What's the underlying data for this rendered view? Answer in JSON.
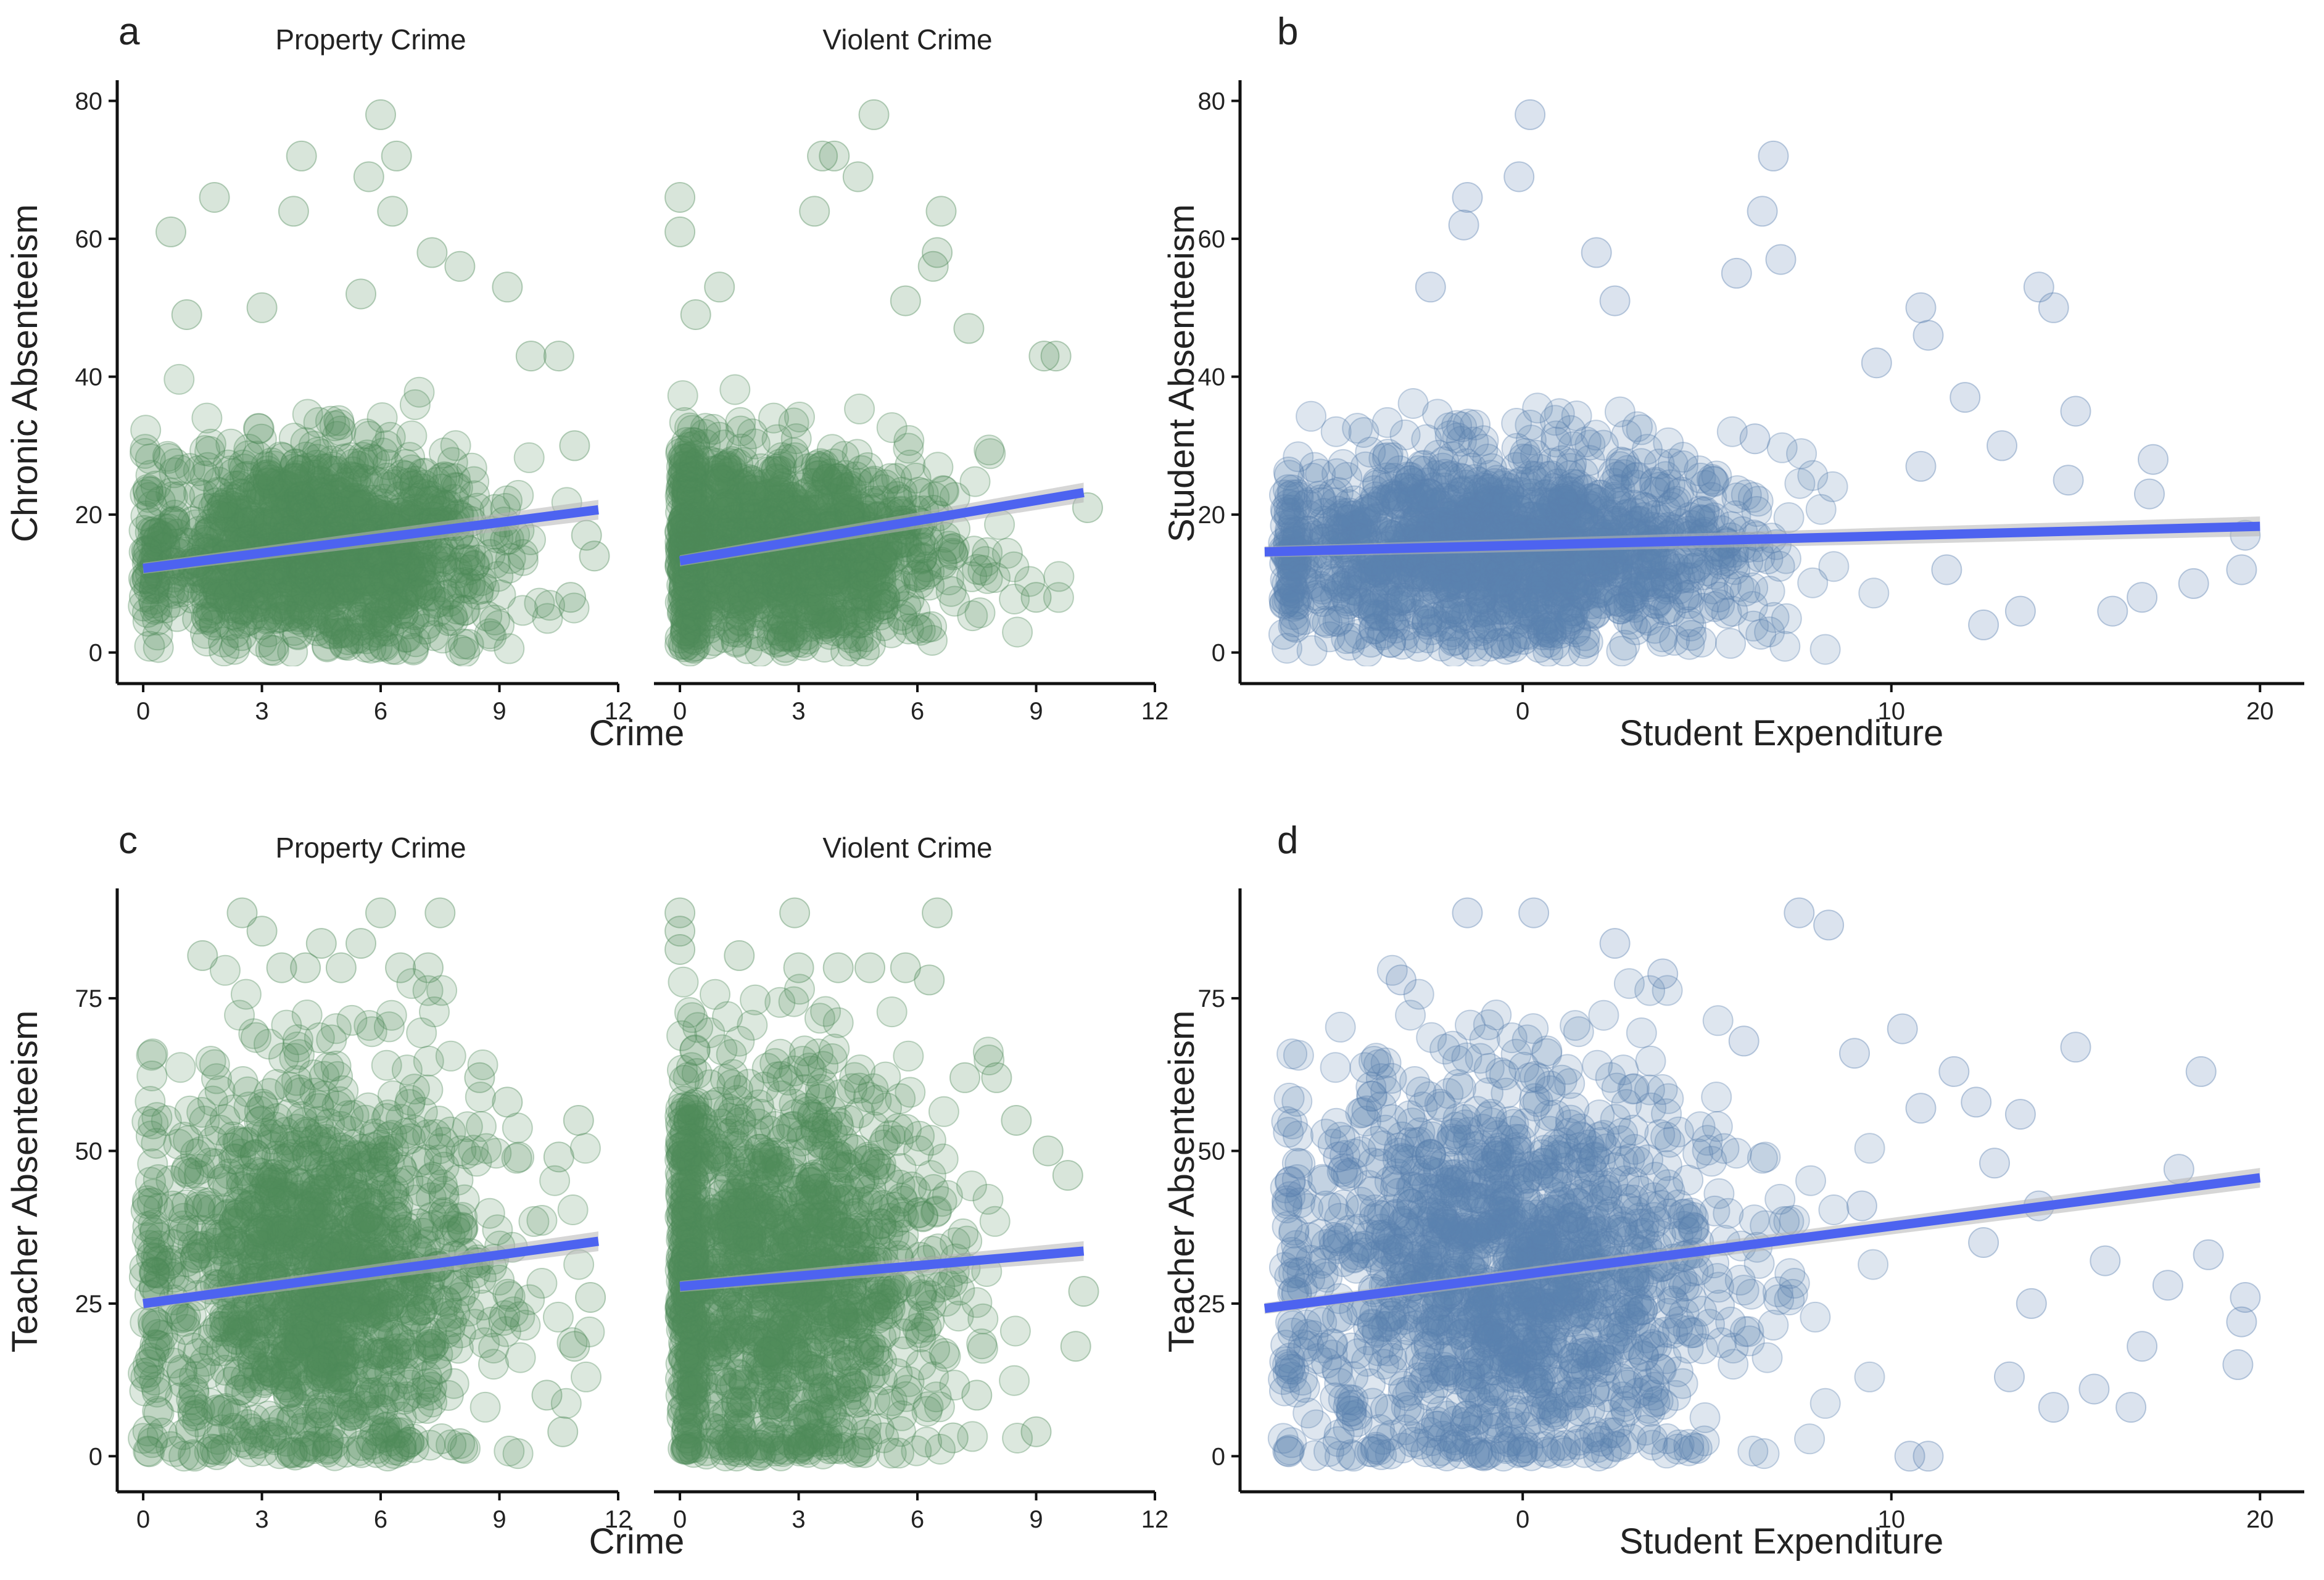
{
  "colors": {
    "crime_points": "#4e8a58",
    "expenditure_points": "#5b80b0",
    "fit_line": "#4d63f0",
    "confidence_band": "#b4b4b4",
    "axis": "#111111"
  },
  "chart_data": [
    {
      "panel": "a",
      "type": "scatter",
      "facets": [
        {
          "title": "Property Crime",
          "xlim": [
            -0.5,
            12
          ],
          "xticks": [
            0,
            3,
            6,
            9,
            12
          ],
          "cloud": {
            "x_center": 4.3,
            "x_sd": 2.2,
            "y_center": 15,
            "y_sd": 7,
            "x_min": 0,
            "x_max": 11.5,
            "y_min": 0,
            "y_max": 48
          },
          "outliers": [
            [
              6.0,
              78
            ],
            [
              4.0,
              72
            ],
            [
              6.4,
              72
            ],
            [
              3.8,
              64
            ],
            [
              5.7,
              69
            ],
            [
              1.8,
              66
            ],
            [
              0.7,
              61
            ],
            [
              6.3,
              64
            ],
            [
              7.3,
              58
            ],
            [
              8.0,
              56
            ],
            [
              9.2,
              53
            ],
            [
              9.8,
              43
            ],
            [
              10.5,
              43
            ],
            [
              10.9,
              30
            ],
            [
              11.2,
              17
            ],
            [
              11.4,
              14
            ],
            [
              10.8,
              8
            ],
            [
              1.1,
              49
            ],
            [
              3.0,
              50
            ],
            [
              5.5,
              52
            ]
          ],
          "trend": {
            "x": [
              0,
              11.5
            ],
            "y": [
              12.2,
              20.7
            ]
          }
        },
        {
          "title": "Violent Crime",
          "xlim": [
            -0.5,
            12
          ],
          "xticks": [
            0,
            3,
            6,
            9,
            12
          ],
          "cloud": {
            "x_center": 2.3,
            "x_sd": 2.2,
            "y_center": 15,
            "y_sd": 7,
            "x_min": 0,
            "x_max": 10.2,
            "y_min": 0,
            "y_max": 48
          },
          "outliers": [
            [
              4.9,
              78
            ],
            [
              3.6,
              72
            ],
            [
              3.9,
              72
            ],
            [
              4.5,
              69
            ],
            [
              3.4,
              64
            ],
            [
              0.0,
              66
            ],
            [
              0.0,
              61
            ],
            [
              6.6,
              64
            ],
            [
              6.5,
              58
            ],
            [
              6.4,
              56
            ],
            [
              1.0,
              53
            ],
            [
              9.2,
              43
            ],
            [
              9.5,
              43
            ],
            [
              10.3,
              21
            ],
            [
              9.0,
              8
            ],
            [
              0.4,
              49
            ],
            [
              5.7,
              51
            ],
            [
              7.3,
              47
            ]
          ],
          "trend": {
            "x": [
              0,
              10.2
            ],
            "y": [
              13.3,
              23.2
            ]
          }
        }
      ],
      "ylabel": "Chronic Absenteeism",
      "xlabel": "Crime",
      "ylim": [
        -2,
        83
      ],
      "yticks": [
        0,
        20,
        40,
        60,
        80
      ]
    },
    {
      "panel": "b",
      "type": "scatter",
      "xlabel": "Student Expenditure",
      "ylabel": "Student Absenteeism",
      "xlim": [
        -7.5,
        21.2
      ],
      "ylim": [
        -2,
        83
      ],
      "xticks": [
        0,
        10,
        20
      ],
      "yticks": [
        0,
        20,
        40,
        60,
        80
      ],
      "cloud": {
        "x_center": -0.5,
        "x_sd": 3.2,
        "y_center": 15,
        "y_sd": 7,
        "x_min": -6.5,
        "x_max": 10,
        "y_min": 0,
        "y_max": 46
      },
      "outliers": [
        [
          0.2,
          78
        ],
        [
          6.8,
          72
        ],
        [
          -0.1,
          69
        ],
        [
          6.5,
          64
        ],
        [
          -1.5,
          66
        ],
        [
          -1.6,
          62
        ],
        [
          2.0,
          58
        ],
        [
          5.8,
          55
        ],
        [
          7.0,
          57
        ],
        [
          14.0,
          53
        ],
        [
          10.8,
          50
        ],
        [
          11.0,
          46
        ],
        [
          14.4,
          50
        ],
        [
          17.1,
          28
        ],
        [
          17.0,
          23
        ],
        [
          19.6,
          17
        ],
        [
          19.5,
          12
        ],
        [
          16.0,
          6
        ],
        [
          13.5,
          6
        ],
        [
          12.0,
          37
        ],
        [
          15.0,
          35
        ],
        [
          18.2,
          10
        ],
        [
          11.5,
          12
        ],
        [
          13.0,
          30
        ],
        [
          14.8,
          25
        ],
        [
          16.8,
          8
        ],
        [
          12.5,
          4
        ],
        [
          -2.5,
          53
        ],
        [
          2.5,
          51
        ],
        [
          6.3,
          31
        ],
        [
          10.8,
          27
        ],
        [
          9.6,
          42
        ]
      ],
      "trend": {
        "x": [
          -7,
          20
        ],
        "y": [
          14.6,
          18.3
        ]
      }
    },
    {
      "panel": "c",
      "type": "scatter",
      "facets": [
        {
          "title": "Property Crime",
          "xlim": [
            -0.5,
            12
          ],
          "xticks": [
            0,
            3,
            6,
            9,
            12
          ],
          "cloud": {
            "x_center": 4.3,
            "x_sd": 2.2,
            "y_center": 30,
            "y_sd": 17,
            "x_min": 0,
            "x_max": 11.5,
            "y_min": 0,
            "y_max": 80
          },
          "outliers": [
            [
              2.5,
              89
            ],
            [
              6.0,
              89
            ],
            [
              7.5,
              89
            ],
            [
              3.0,
              86
            ],
            [
              1.5,
              82
            ],
            [
              4.5,
              84
            ],
            [
              5.5,
              84
            ],
            [
              7.2,
              80
            ],
            [
              8.5,
              62
            ],
            [
              9.2,
              58
            ],
            [
              11.0,
              55
            ],
            [
              10.5,
              49
            ],
            [
              11.3,
              26
            ],
            [
              10.9,
              18
            ],
            [
              10.2,
              10
            ],
            [
              10.6,
              4
            ],
            [
              3.5,
              80
            ],
            [
              4.1,
              80
            ],
            [
              5.0,
              80
            ],
            [
              6.5,
              80
            ]
          ],
          "trend": {
            "x": [
              0,
              11.5
            ],
            "y": [
              25,
              35.2
            ]
          }
        },
        {
          "title": "Violent Crime",
          "xlim": [
            -0.5,
            12
          ],
          "xticks": [
            0,
            3,
            6,
            9,
            12
          ],
          "cloud": {
            "x_center": 2.3,
            "x_sd": 2.2,
            "y_center": 30,
            "y_sd": 17,
            "x_min": 0,
            "x_max": 10.2,
            "y_min": 0,
            "y_max": 80
          },
          "outliers": [
            [
              0.0,
              89
            ],
            [
              0.0,
              86
            ],
            [
              0.0,
              83
            ],
            [
              2.9,
              89
            ],
            [
              6.5,
              89
            ],
            [
              1.5,
              82
            ],
            [
              3.0,
              80
            ],
            [
              4.0,
              80
            ],
            [
              4.8,
              80
            ],
            [
              5.7,
              80
            ],
            [
              6.3,
              78
            ],
            [
              7.2,
              62
            ],
            [
              8.0,
              62
            ],
            [
              8.5,
              55
            ],
            [
              9.3,
              50
            ],
            [
              9.8,
              46
            ],
            [
              10.2,
              27
            ],
            [
              10.0,
              18
            ],
            [
              7.5,
              10
            ],
            [
              6.9,
              3
            ],
            [
              9.0,
              4
            ]
          ],
          "trend": {
            "x": [
              0,
              10.2
            ],
            "y": [
              27.8,
              33.6
            ]
          }
        }
      ],
      "ylabel": "Teacher Absenteeism",
      "xlabel": "Crime",
      "ylim": [
        -3,
        93
      ],
      "yticks": [
        0,
        25,
        50,
        75
      ]
    },
    {
      "panel": "d",
      "type": "scatter",
      "xlabel": "Student Expenditure",
      "ylabel": "Teacher Absenteeism",
      "xlim": [
        -7.5,
        21.2
      ],
      "ylim": [
        -3,
        93
      ],
      "xticks": [
        0,
        10,
        20
      ],
      "yticks": [
        0,
        25,
        50,
        75
      ],
      "cloud": {
        "x_center": -0.5,
        "x_sd": 3.0,
        "y_center": 30,
        "y_sd": 17,
        "x_min": -6.5,
        "x_max": 10,
        "y_min": 0,
        "y_max": 80
      },
      "outliers": [
        [
          -1.5,
          89
        ],
        [
          0.3,
          89
        ],
        [
          7.5,
          89
        ],
        [
          8.3,
          87
        ],
        [
          -3.3,
          78
        ],
        [
          3.8,
          79
        ],
        [
          2.5,
          84
        ],
        [
          6.0,
          68
        ],
        [
          9.0,
          66
        ],
        [
          10.3,
          70
        ],
        [
          11.7,
          63
        ],
        [
          12.3,
          58
        ],
        [
          13.5,
          56
        ],
        [
          15.0,
          67
        ],
        [
          17.8,
          47
        ],
        [
          18.4,
          63
        ],
        [
          19.6,
          26
        ],
        [
          19.5,
          22
        ],
        [
          19.4,
          15
        ],
        [
          16.5,
          8
        ],
        [
          15.5,
          11
        ],
        [
          14.4,
          8
        ],
        [
          13.2,
          13
        ],
        [
          11.0,
          0
        ],
        [
          10.5,
          0
        ],
        [
          12.5,
          35
        ],
        [
          14.0,
          41
        ],
        [
          15.8,
          32
        ],
        [
          17.5,
          28
        ],
        [
          18.6,
          33
        ],
        [
          9.2,
          41
        ],
        [
          10.8,
          57
        ],
        [
          -5.0,
          49
        ],
        [
          -6.3,
          45
        ],
        [
          12.8,
          48
        ],
        [
          16.8,
          18
        ],
        [
          13.8,
          25
        ]
      ],
      "trend": {
        "x": [
          -7,
          20
        ],
        "y": [
          24.2,
          45.6
        ]
      }
    }
  ]
}
